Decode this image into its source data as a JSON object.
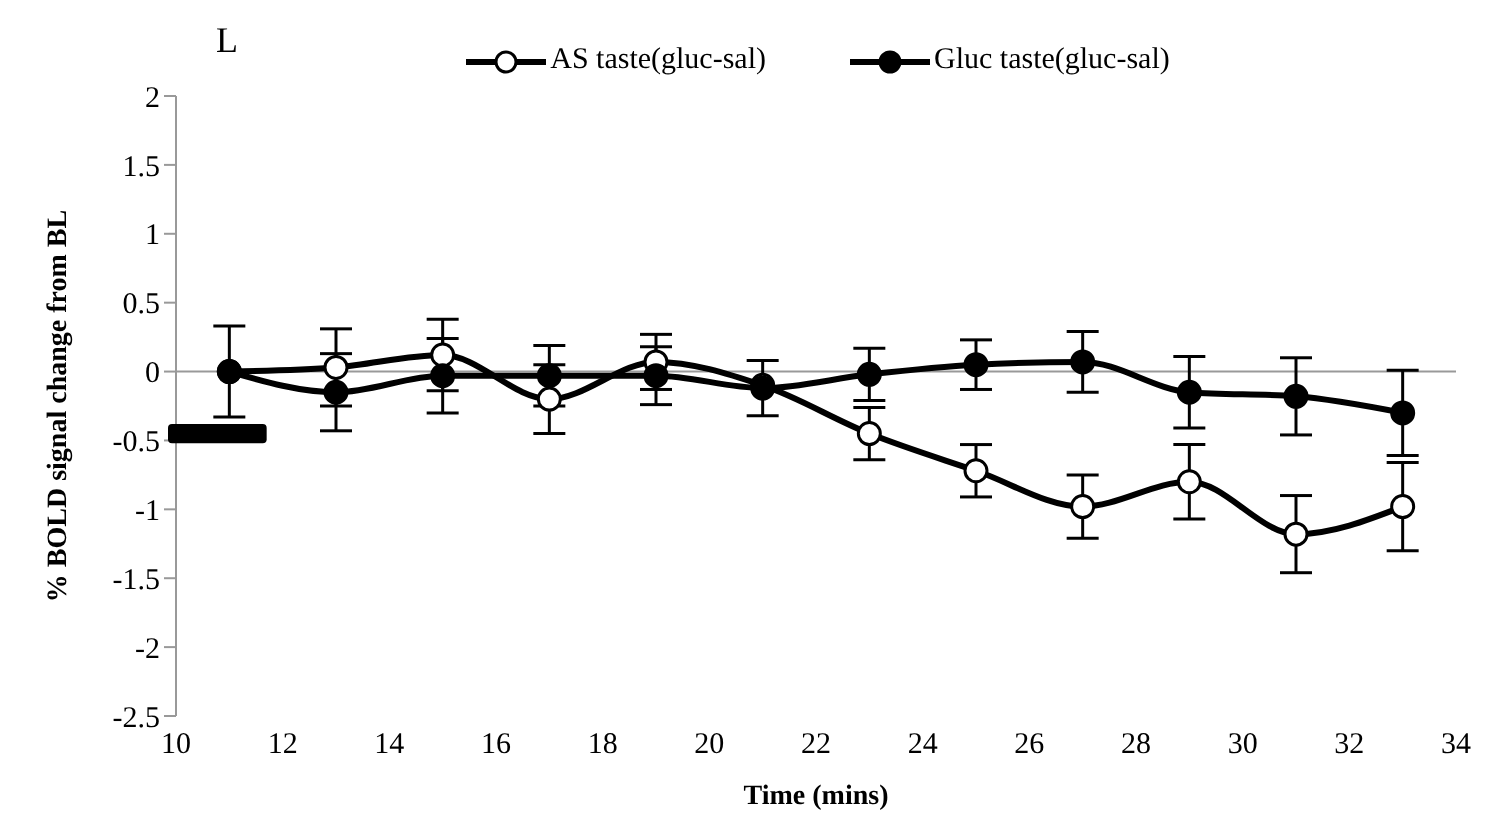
{
  "chart_data": {
    "type": "line",
    "title": "L",
    "xlabel": "Time (mins)",
    "ylabel": "% BOLD signal change from BL",
    "x": [
      11,
      13,
      15,
      17,
      19,
      21,
      23,
      25,
      27,
      29,
      31,
      33
    ],
    "series": [
      {
        "name": "AS taste(gluc-sal)",
        "color": "#000000",
        "values": [
          0,
          0.03,
          0.12,
          -0.2,
          0.07,
          -0.1,
          -0.45,
          -0.72,
          -0.98,
          -0.8,
          -1.18,
          -0.98
        ],
        "errors": [
          null,
          0.28,
          0.26,
          0.25,
          0.2,
          null,
          0.19,
          0.19,
          0.23,
          0.27,
          0.28,
          0.32
        ]
      },
      {
        "name": "Gluc taste(gluc-sal)",
        "color": "#000000",
        "values": [
          0,
          -0.15,
          -0.03,
          -0.03,
          -0.03,
          -0.12,
          -0.02,
          0.05,
          0.07,
          -0.15,
          -0.18,
          -0.3
        ],
        "errors": [
          0.33,
          0.28,
          0.27,
          0.22,
          0.21,
          0.2,
          0.19,
          0.18,
          0.22,
          0.26,
          0.28,
          0.31
        ]
      }
    ],
    "xlim": [
      10,
      34
    ],
    "xticks": [
      10,
      12,
      14,
      16,
      18,
      20,
      22,
      24,
      26,
      28,
      30,
      32,
      34
    ],
    "ylim": [
      -2.5,
      2
    ],
    "yticks": [
      -2.5,
      -2,
      -1.5,
      -1,
      -0.5,
      0,
      0.5,
      1,
      1.5,
      2
    ],
    "ref_lines": [
      {
        "axis": "y",
        "value": 0,
        "color": "#999999"
      }
    ],
    "grid": false,
    "legend": "top",
    "marker": "circle",
    "line_style": "solid"
  }
}
